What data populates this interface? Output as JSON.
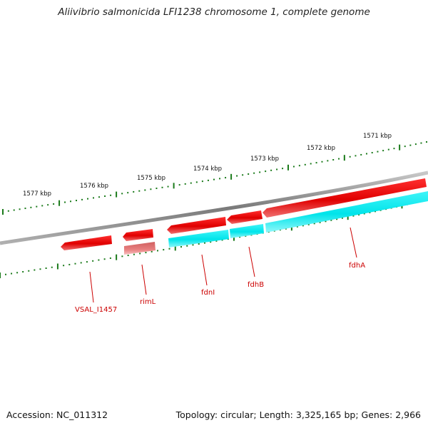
{
  "title": "Aliivibrio salmonicida LFI1238 chromosome 1, complete genome",
  "accession": "Accession: NC_011312",
  "summary": "Topology: circular; Length: 3,325,165 bp; Genes: 2,966",
  "colors": {
    "backbone": "#8a8a8a",
    "forward_gene": "#ee1111",
    "reverse_gene": "#ee1111",
    "pseudo_gene": "#e88080",
    "cds_feature": "#11e8ee",
    "tick": "#1a7a1a",
    "gene_label": "#cc0000"
  },
  "ruler": {
    "labels": [
      "1577 kbp",
      "1576 kbp",
      "1575 kbp",
      "1574 kbp",
      "1573 kbp",
      "1572 kbp",
      "1571 kbp"
    ]
  },
  "genes": [
    {
      "name": "VSAL_I1457"
    },
    {
      "name": "rimL"
    },
    {
      "name": "fdnI"
    },
    {
      "name": "fdhB"
    },
    {
      "name": "fdhA"
    }
  ]
}
